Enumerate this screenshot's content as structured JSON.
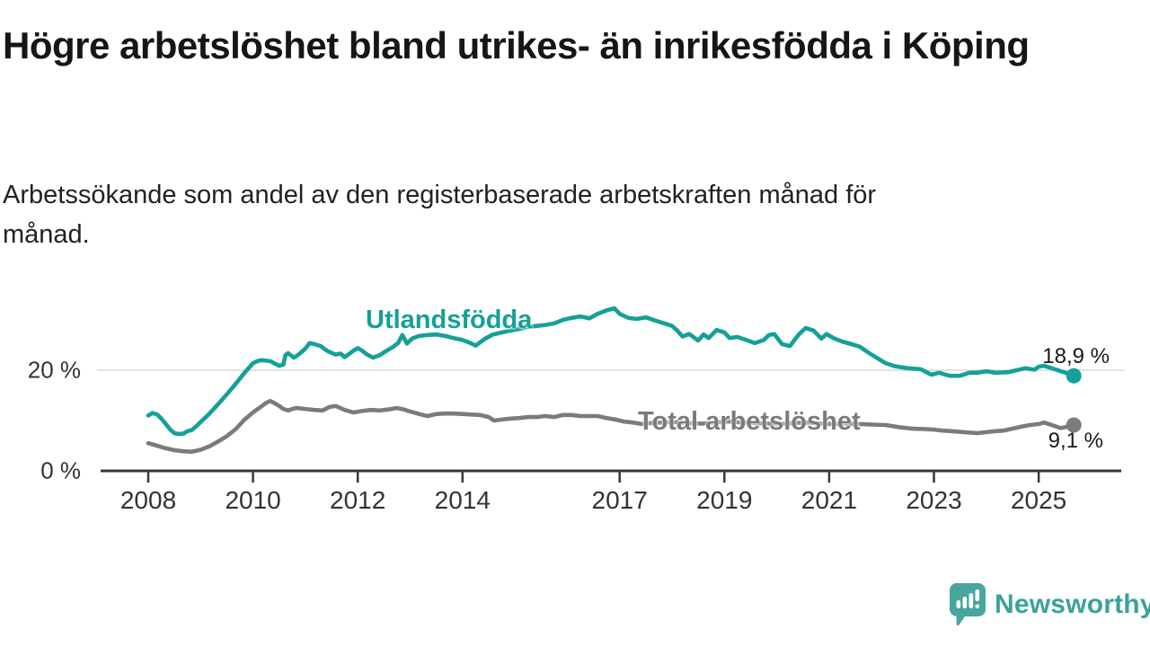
{
  "title": "Högre arbetslöshet bland utrikes- än inrikesfödda i Köping",
  "subtitle_lines": [
    "Arbetssökande som andel av den registerbaserade arbetskraften månad för",
    "månad."
  ],
  "colors": {
    "teal": "#15a098",
    "gray": "#7b7b7b",
    "axis": "#383838",
    "tick_text": "#333333",
    "grid": "#d9d9d9",
    "title_text": "#161616",
    "logo_teal": "#48a69e",
    "logo_text_teal": "#3aa29a"
  },
  "branding": {
    "name": "Newsworthy"
  },
  "chart_data": {
    "type": "line",
    "title": "Högre arbetslöshet bland utrikes- än inrikesfödda i Köping",
    "ylabel": "Arbetssökande som andel av den registerbaserade arbetskraften",
    "grid": "horizontal-20-only",
    "legend_position": "inline-labels",
    "x_axis": {
      "ticks": [
        2008,
        2010,
        2012,
        2014,
        2017,
        2019,
        2021,
        2023,
        2025
      ],
      "range": [
        2007.9,
        2026.1
      ]
    },
    "y_axis": {
      "ticks": [
        {
          "label": "20 %",
          "value": 20
        },
        {
          "label": "0 %",
          "value": 0
        }
      ],
      "range": [
        0,
        34.5
      ]
    },
    "series": [
      {
        "name": "Utlandsfödda",
        "color": "#15a098",
        "end_label": "18,9 %",
        "end_value": 18.9,
        "points": [
          [
            2008.0,
            11.0
          ],
          [
            2008.08,
            11.5
          ],
          [
            2008.17,
            11.2
          ],
          [
            2008.25,
            10.4
          ],
          [
            2008.33,
            9.4
          ],
          [
            2008.42,
            8.2
          ],
          [
            2008.5,
            7.5
          ],
          [
            2008.58,
            7.3
          ],
          [
            2008.67,
            7.4
          ],
          [
            2008.75,
            7.9
          ],
          [
            2008.83,
            8.1
          ],
          [
            2008.92,
            8.9
          ],
          [
            2009.0,
            9.7
          ],
          [
            2009.17,
            11.4
          ],
          [
            2009.33,
            13.2
          ],
          [
            2009.5,
            15.2
          ],
          [
            2009.67,
            17.3
          ],
          [
            2009.83,
            19.4
          ],
          [
            2010.0,
            21.4
          ],
          [
            2010.08,
            21.8
          ],
          [
            2010.17,
            22.0
          ],
          [
            2010.25,
            21.9
          ],
          [
            2010.33,
            21.8
          ],
          [
            2010.42,
            21.3
          ],
          [
            2010.5,
            20.9
          ],
          [
            2010.58,
            21.1
          ],
          [
            2010.62,
            23.0
          ],
          [
            2010.67,
            23.4
          ],
          [
            2010.78,
            22.5
          ],
          [
            2010.88,
            23.2
          ],
          [
            2011.0,
            24.3
          ],
          [
            2011.08,
            25.4
          ],
          [
            2011.17,
            25.2
          ],
          [
            2011.29,
            24.8
          ],
          [
            2011.38,
            24.1
          ],
          [
            2011.46,
            23.6
          ],
          [
            2011.58,
            23.1
          ],
          [
            2011.67,
            23.3
          ],
          [
            2011.75,
            22.6
          ],
          [
            2011.83,
            23.2
          ],
          [
            2011.92,
            23.9
          ],
          [
            2012.0,
            24.4
          ],
          [
            2012.08,
            23.9
          ],
          [
            2012.17,
            23.2
          ],
          [
            2012.29,
            22.5
          ],
          [
            2012.42,
            23.0
          ],
          [
            2012.54,
            23.8
          ],
          [
            2012.67,
            24.6
          ],
          [
            2012.77,
            25.4
          ],
          [
            2012.85,
            27.0
          ],
          [
            2012.94,
            25.3
          ],
          [
            2013.04,
            26.3
          ],
          [
            2013.17,
            26.8
          ],
          [
            2013.33,
            27.0
          ],
          [
            2013.5,
            27.1
          ],
          [
            2013.67,
            26.8
          ],
          [
            2013.83,
            26.4
          ],
          [
            2014.0,
            26.0
          ],
          [
            2014.13,
            25.5
          ],
          [
            2014.25,
            24.9
          ],
          [
            2014.42,
            26.2
          ],
          [
            2014.58,
            27.1
          ],
          [
            2014.75,
            27.5
          ],
          [
            2014.92,
            27.9
          ],
          [
            2015.08,
            28.2
          ],
          [
            2015.25,
            28.6
          ],
          [
            2015.42,
            28.8
          ],
          [
            2015.58,
            29.0
          ],
          [
            2015.75,
            29.3
          ],
          [
            2015.92,
            30.0
          ],
          [
            2016.08,
            30.4
          ],
          [
            2016.25,
            30.7
          ],
          [
            2016.42,
            30.3
          ],
          [
            2016.58,
            31.2
          ],
          [
            2016.75,
            31.9
          ],
          [
            2016.9,
            32.3
          ],
          [
            2017.0,
            31.2
          ],
          [
            2017.17,
            30.4
          ],
          [
            2017.33,
            30.2
          ],
          [
            2017.5,
            30.5
          ],
          [
            2017.67,
            29.9
          ],
          [
            2017.83,
            29.4
          ],
          [
            2018.0,
            28.8
          ],
          [
            2018.1,
            27.9
          ],
          [
            2018.2,
            26.7
          ],
          [
            2018.33,
            27.2
          ],
          [
            2018.5,
            25.9
          ],
          [
            2018.6,
            27.1
          ],
          [
            2018.7,
            26.4
          ],
          [
            2018.85,
            28.0
          ],
          [
            2019.0,
            27.5
          ],
          [
            2019.1,
            26.4
          ],
          [
            2019.25,
            26.6
          ],
          [
            2019.42,
            26.0
          ],
          [
            2019.58,
            25.4
          ],
          [
            2019.75,
            26.0
          ],
          [
            2019.85,
            27.0
          ],
          [
            2019.95,
            27.2
          ],
          [
            2020.1,
            25.2
          ],
          [
            2020.25,
            24.8
          ],
          [
            2020.42,
            27.1
          ],
          [
            2020.55,
            28.4
          ],
          [
            2020.7,
            27.9
          ],
          [
            2020.85,
            26.3
          ],
          [
            2020.95,
            27.2
          ],
          [
            2021.1,
            26.3
          ],
          [
            2021.25,
            25.7
          ],
          [
            2021.42,
            25.2
          ],
          [
            2021.58,
            24.7
          ],
          [
            2021.75,
            23.5
          ],
          [
            2021.92,
            22.4
          ],
          [
            2022.08,
            21.4
          ],
          [
            2022.25,
            20.8
          ],
          [
            2022.5,
            20.4
          ],
          [
            2022.75,
            20.2
          ],
          [
            2022.95,
            19.1
          ],
          [
            2023.1,
            19.5
          ],
          [
            2023.3,
            18.9
          ],
          [
            2023.5,
            18.9
          ],
          [
            2023.67,
            19.5
          ],
          [
            2023.83,
            19.5
          ],
          [
            2024.0,
            19.8
          ],
          [
            2024.17,
            19.5
          ],
          [
            2024.42,
            19.6
          ],
          [
            2024.58,
            20.0
          ],
          [
            2024.75,
            20.4
          ],
          [
            2024.92,
            20.1
          ],
          [
            2025.0,
            20.7
          ],
          [
            2025.1,
            20.9
          ],
          [
            2025.25,
            20.4
          ],
          [
            2025.42,
            19.8
          ],
          [
            2025.58,
            19.3
          ],
          [
            2025.67,
            18.9
          ]
        ]
      },
      {
        "name": "Total arbetslöshet",
        "color": "#7b7b7b",
        "end_label": "9,1 %",
        "end_value": 9.1,
        "points": [
          [
            2008.0,
            5.5
          ],
          [
            2008.17,
            5.0
          ],
          [
            2008.33,
            4.5
          ],
          [
            2008.5,
            4.1
          ],
          [
            2008.67,
            3.9
          ],
          [
            2008.83,
            3.8
          ],
          [
            2009.0,
            4.2
          ],
          [
            2009.17,
            4.9
          ],
          [
            2009.33,
            5.8
          ],
          [
            2009.5,
            6.9
          ],
          [
            2009.67,
            8.3
          ],
          [
            2009.83,
            10.1
          ],
          [
            2010.0,
            11.6
          ],
          [
            2010.17,
            12.9
          ],
          [
            2010.25,
            13.5
          ],
          [
            2010.33,
            13.9
          ],
          [
            2010.42,
            13.4
          ],
          [
            2010.5,
            12.9
          ],
          [
            2010.58,
            12.3
          ],
          [
            2010.67,
            12.0
          ],
          [
            2010.75,
            12.3
          ],
          [
            2010.83,
            12.5
          ],
          [
            2010.92,
            12.4
          ],
          [
            2011.0,
            12.3
          ],
          [
            2011.17,
            12.1
          ],
          [
            2011.33,
            12.0
          ],
          [
            2011.46,
            12.7
          ],
          [
            2011.58,
            12.9
          ],
          [
            2011.75,
            12.1
          ],
          [
            2011.92,
            11.6
          ],
          [
            2012.08,
            11.9
          ],
          [
            2012.25,
            12.1
          ],
          [
            2012.42,
            12.0
          ],
          [
            2012.58,
            12.2
          ],
          [
            2012.75,
            12.5
          ],
          [
            2012.88,
            12.2
          ],
          [
            2013.0,
            11.8
          ],
          [
            2013.17,
            11.3
          ],
          [
            2013.33,
            10.9
          ],
          [
            2013.5,
            11.3
          ],
          [
            2013.67,
            11.4
          ],
          [
            2013.83,
            11.4
          ],
          [
            2014.0,
            11.3
          ],
          [
            2014.17,
            11.2
          ],
          [
            2014.33,
            11.1
          ],
          [
            2014.5,
            10.7
          ],
          [
            2014.6,
            10.0
          ],
          [
            2014.75,
            10.2
          ],
          [
            2014.92,
            10.4
          ],
          [
            2015.08,
            10.5
          ],
          [
            2015.25,
            10.7
          ],
          [
            2015.42,
            10.7
          ],
          [
            2015.58,
            10.9
          ],
          [
            2015.75,
            10.7
          ],
          [
            2015.92,
            11.1
          ],
          [
            2016.08,
            11.1
          ],
          [
            2016.25,
            10.9
          ],
          [
            2016.42,
            10.9
          ],
          [
            2016.58,
            10.9
          ],
          [
            2016.75,
            10.5
          ],
          [
            2016.92,
            10.2
          ],
          [
            2017.08,
            9.8
          ],
          [
            2017.25,
            9.6
          ],
          [
            2017.42,
            9.3
          ],
          [
            2017.58,
            9.5
          ],
          [
            2017.83,
            9.6
          ],
          [
            2018.08,
            9.7
          ],
          [
            2018.33,
            9.5
          ],
          [
            2018.58,
            9.4
          ],
          [
            2018.83,
            9.6
          ],
          [
            2019.08,
            9.8
          ],
          [
            2019.33,
            9.6
          ],
          [
            2019.58,
            9.5
          ],
          [
            2019.83,
            9.4
          ],
          [
            2020.08,
            9.3
          ],
          [
            2020.33,
            9.5
          ],
          [
            2020.58,
            9.6
          ],
          [
            2020.83,
            9.4
          ],
          [
            2021.08,
            9.3
          ],
          [
            2021.33,
            9.4
          ],
          [
            2021.58,
            9.3
          ],
          [
            2021.83,
            9.2
          ],
          [
            2022.08,
            9.1
          ],
          [
            2022.33,
            8.7
          ],
          [
            2022.58,
            8.4
          ],
          [
            2022.83,
            8.3
          ],
          [
            2023.0,
            8.2
          ],
          [
            2023.17,
            8.0
          ],
          [
            2023.33,
            7.9
          ],
          [
            2023.58,
            7.7
          ],
          [
            2023.83,
            7.5
          ],
          [
            2024.0,
            7.7
          ],
          [
            2024.17,
            7.9
          ],
          [
            2024.33,
            8.0
          ],
          [
            2024.5,
            8.4
          ],
          [
            2024.67,
            8.8
          ],
          [
            2024.83,
            9.1
          ],
          [
            2025.0,
            9.3
          ],
          [
            2025.1,
            9.6
          ],
          [
            2025.25,
            9.1
          ],
          [
            2025.42,
            8.5
          ],
          [
            2025.55,
            8.8
          ],
          [
            2025.67,
            9.1
          ]
        ]
      }
    ]
  }
}
